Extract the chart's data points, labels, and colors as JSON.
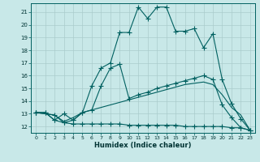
{
  "background_color": "#c8e8e8",
  "grid_color": "#aacccc",
  "line_color": "#006060",
  "xlabel": "Humidex (Indice chaleur)",
  "ylabel_ticks": [
    12,
    13,
    14,
    15,
    16,
    17,
    18,
    19,
    20,
    21
  ],
  "xlim": [
    -0.5,
    23.5
  ],
  "ylim": [
    11.5,
    21.7
  ],
  "line1_x": [
    0,
    1,
    2,
    3,
    4,
    5,
    6,
    7,
    8,
    9,
    10,
    11,
    12,
    13,
    14,
    15,
    16,
    17,
    18,
    19,
    20,
    21,
    22,
    23
  ],
  "line1_y": [
    13.1,
    13.1,
    12.5,
    13.0,
    12.5,
    13.1,
    15.2,
    16.6,
    17.0,
    19.4,
    19.4,
    21.4,
    20.5,
    21.4,
    21.4,
    19.5,
    19.5,
    19.7,
    18.2,
    19.3,
    15.7,
    13.8,
    12.6,
    11.7
  ],
  "line2_x": [
    0,
    2,
    3,
    4,
    5,
    6,
    7,
    8,
    9,
    10,
    11,
    12,
    13,
    14,
    15,
    16,
    17,
    18,
    19,
    20,
    21,
    22,
    23
  ],
  "line2_y": [
    13.1,
    12.9,
    12.3,
    12.5,
    13.1,
    13.3,
    15.2,
    16.6,
    16.9,
    14.2,
    14.5,
    14.7,
    15.0,
    15.2,
    15.4,
    15.6,
    15.8,
    16.0,
    15.7,
    13.7,
    12.7,
    11.9,
    11.7
  ],
  "line3_x": [
    0,
    2,
    3,
    4,
    5,
    6,
    7,
    8,
    9,
    10,
    11,
    12,
    13,
    14,
    15,
    16,
    17,
    18,
    19,
    20,
    21,
    22,
    23
  ],
  "line3_y": [
    13.1,
    12.9,
    12.4,
    12.7,
    13.1,
    13.3,
    13.5,
    13.7,
    13.9,
    14.1,
    14.3,
    14.5,
    14.7,
    14.9,
    15.1,
    15.3,
    15.4,
    15.5,
    15.3,
    14.5,
    13.5,
    12.9,
    11.7
  ],
  "line4_x": [
    0,
    1,
    2,
    3,
    4,
    5,
    6,
    7,
    8,
    9,
    10,
    11,
    12,
    13,
    14,
    15,
    16,
    17,
    18,
    19,
    20,
    21,
    22,
    23
  ],
  "line4_y": [
    13.1,
    13.1,
    12.5,
    12.3,
    12.2,
    12.2,
    12.2,
    12.2,
    12.2,
    12.2,
    12.1,
    12.1,
    12.1,
    12.1,
    12.1,
    12.1,
    12.0,
    12.0,
    12.0,
    12.0,
    12.0,
    11.9,
    11.9,
    11.7
  ]
}
